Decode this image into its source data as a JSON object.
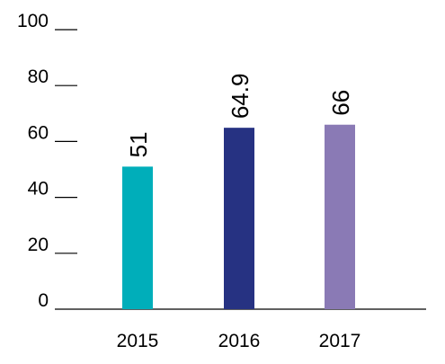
{
  "chart_data": {
    "type": "bar",
    "categories": [
      "2015",
      "2016",
      "2017"
    ],
    "values": [
      51,
      64.9,
      66
    ],
    "value_labels": [
      "51",
      "64.9",
      "66"
    ],
    "colors": [
      "#00aeba",
      "#263282",
      "#8a7ab5"
    ],
    "ylim": [
      0,
      100
    ],
    "yticks": [
      0,
      20,
      40,
      60,
      80,
      100
    ],
    "ytick_labels": [
      "0",
      "20",
      "40",
      "60",
      "80",
      "100"
    ],
    "grid": false,
    "legend": "none"
  }
}
